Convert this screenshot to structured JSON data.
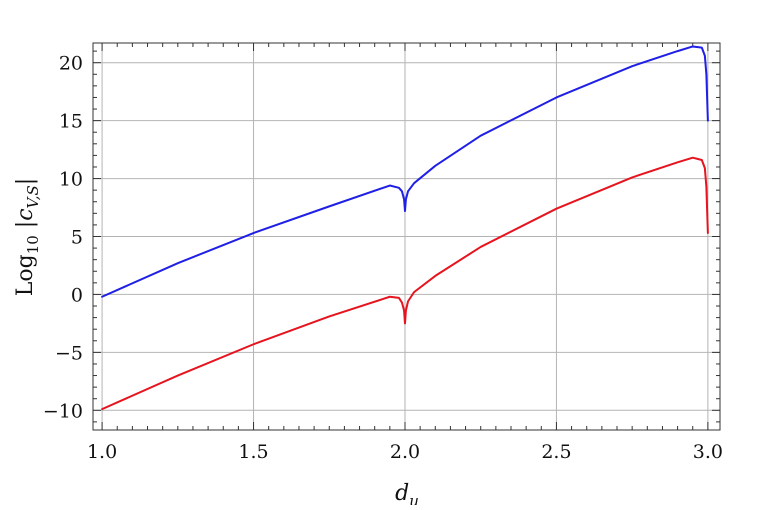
{
  "chart_data": {
    "type": "line",
    "title": "",
    "xlabel": "d",
    "xlabel_sub": "u",
    "ylabel": {
      "prefix": "Log",
      "sub": "10",
      "body": " |c",
      "body_sub": "V,S",
      "suffix": "|"
    },
    "xlim": [
      0.97,
      3.04
    ],
    "ylim": [
      -11.7,
      21.7
    ],
    "x_ticks": [
      1.0,
      1.5,
      2.0,
      2.5,
      3.0
    ],
    "x_tick_labels": [
      "1.0",
      "1.5",
      "2.0",
      "2.5",
      "3.0"
    ],
    "y_ticks": [
      -10,
      -5,
      0,
      5,
      10,
      15,
      20
    ],
    "y_tick_labels": [
      "−10",
      "−5",
      "0",
      "5",
      "10",
      "15",
      "20"
    ],
    "grid": true,
    "legend": "none",
    "series": [
      {
        "color": "#1f1fe6",
        "x": [
          1.0,
          1.25,
          1.5,
          1.75,
          1.95,
          1.98,
          1.99,
          1.997,
          2.0,
          2.003,
          2.01,
          2.03,
          2.1,
          2.25,
          2.5,
          2.75,
          2.9,
          2.95,
          2.98,
          2.99,
          2.995,
          3.0
        ],
        "y": [
          -0.2,
          2.7,
          5.3,
          7.6,
          9.4,
          9.2,
          8.9,
          8.2,
          7.2,
          8.2,
          8.9,
          9.6,
          11.1,
          13.7,
          17.0,
          19.7,
          21.0,
          21.4,
          21.3,
          20.6,
          19.0,
          15.0
        ]
      },
      {
        "color": "#e6141e",
        "x": [
          1.0,
          1.25,
          1.5,
          1.75,
          1.95,
          1.98,
          1.99,
          1.997,
          2.0,
          2.003,
          2.01,
          2.03,
          2.1,
          2.25,
          2.5,
          2.75,
          2.9,
          2.95,
          2.98,
          2.99,
          2.995,
          3.0
        ],
        "y": [
          -9.9,
          -7.0,
          -4.3,
          -1.9,
          -0.2,
          -0.3,
          -0.7,
          -1.4,
          -2.5,
          -1.4,
          -0.6,
          0.2,
          1.6,
          4.1,
          7.4,
          10.1,
          11.4,
          11.8,
          11.6,
          10.9,
          9.3,
          5.3
        ]
      }
    ]
  }
}
